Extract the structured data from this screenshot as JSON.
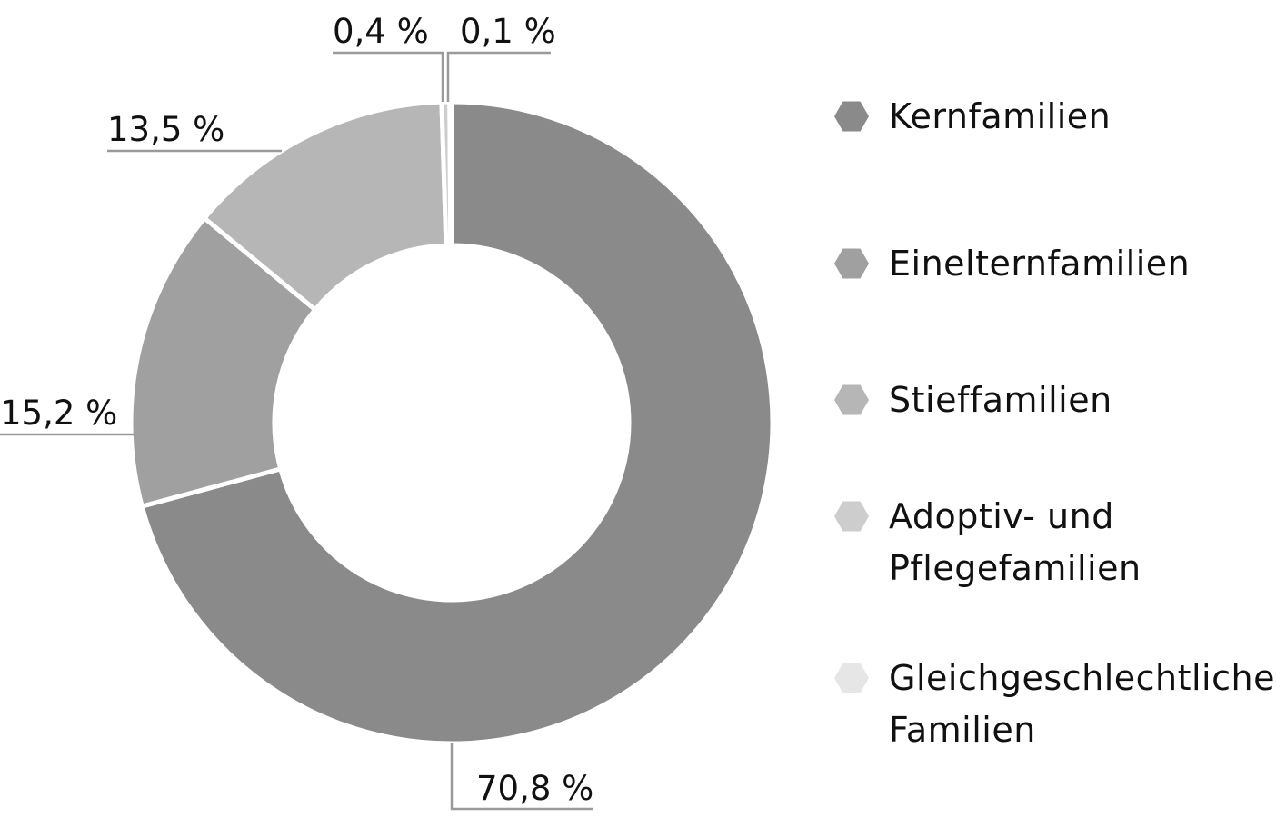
{
  "chart_data": {
    "type": "pie",
    "donut": true,
    "title": "",
    "series": [
      {
        "name": "Kernfamilien",
        "value": 70.8,
        "label": "70,8 %",
        "color": "#8a8a8a"
      },
      {
        "name": "Einelternfamilien",
        "value": 15.2,
        "label": "15,2 %",
        "color": "#a0a0a0"
      },
      {
        "name": "Stieffamilien",
        "value": 13.5,
        "label": "13,5 %",
        "color": "#b6b6b6"
      },
      {
        "name": "Adoptiv- und Pflegefamilien",
        "value": 0.4,
        "label": "0,4 %",
        "color": "#cdcdcd"
      },
      {
        "name": "Gleichgeschlechtliche Familien",
        "value": 0.1,
        "label": "0,1 %",
        "color": "#e6e6e6"
      }
    ],
    "legend": {
      "position": "right",
      "entries": [
        {
          "lines": [
            "Kernfamilien"
          ],
          "color": "#8a8a8a"
        },
        {
          "lines": [
            "Einelternfamilien"
          ],
          "color": "#a0a0a0"
        },
        {
          "lines": [
            "Stieffamilien"
          ],
          "color": "#b6b6b6"
        },
        {
          "lines": [
            "Adoptiv- und",
            "Pflegefamilien"
          ],
          "color": "#cdcdcd"
        },
        {
          "lines": [
            "Gleichgeschlechtliche",
            "Familien"
          ],
          "color": "#e6e6e6"
        }
      ]
    }
  }
}
